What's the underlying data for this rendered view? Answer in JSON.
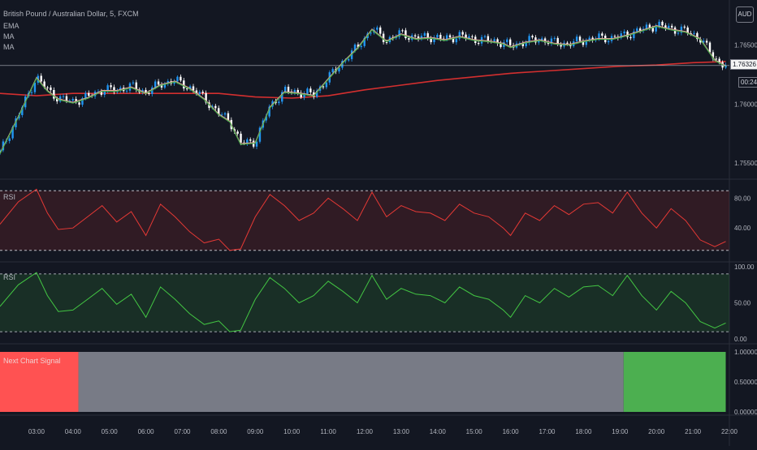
{
  "instrument": {
    "title": "British Pound / Australian Dollar, 5, FXCM",
    "currency": "AUD",
    "last_price": "1.76326",
    "countdown": "00:24"
  },
  "legend": {
    "items": [
      "EMA",
      "MA",
      "MA"
    ]
  },
  "panes": {
    "rsi_red_label": "RSI",
    "rsi_green_label": "RSI",
    "signal_label": "Next Chart Signal"
  },
  "colors": {
    "background": "#131722",
    "bull": "#2196f3",
    "bear": "#ffffff",
    "ema": "#f0a0a0",
    "ma_fast": "#4caf50",
    "ma_slow": "#d32f2f",
    "rsi_red": "#e53935",
    "rsi_green": "#43c643",
    "signal_red": "#ff5252",
    "signal_gray": "#787b86",
    "signal_green": "#4caf50"
  },
  "chart_data": [
    {
      "type": "line",
      "pane": "price",
      "x_ticks": [
        "03:00",
        "04:00",
        "05:00",
        "06:00",
        "07:00",
        "08:00",
        "09:00",
        "10:00",
        "11:00",
        "12:00",
        "13:00",
        "14:00",
        "15:00",
        "16:00",
        "17:00",
        "18:00",
        "19:00",
        "20:00",
        "21:00",
        "22:00"
      ],
      "x_range_hours": [
        2.0,
        22.0
      ],
      "y_ticks": [
        "1.76500",
        "1.76000",
        "1.75500"
      ],
      "ylim": [
        1.7537,
        1.7684
      ],
      "close_series_hours": [
        2.0,
        2.5,
        3.0,
        3.3,
        3.6,
        4.0,
        4.4,
        4.8,
        5.2,
        5.6,
        6.0,
        6.4,
        6.8,
        7.2,
        7.6,
        8.0,
        8.3,
        8.6,
        9.0,
        9.4,
        9.8,
        10.2,
        10.6,
        11.0,
        11.4,
        11.8,
        12.2,
        12.6,
        13.0,
        13.4,
        13.8,
        14.2,
        14.6,
        15.0,
        15.4,
        15.8,
        16.0,
        16.4,
        16.8,
        17.2,
        17.6,
        18.0,
        18.4,
        18.8,
        19.2,
        19.6,
        20.0,
        20.4,
        20.8,
        21.2,
        21.6,
        21.9
      ],
      "close_series_values": [
        1.7559,
        1.759,
        1.7623,
        1.7612,
        1.7605,
        1.7602,
        1.7606,
        1.7612,
        1.7612,
        1.7615,
        1.761,
        1.7617,
        1.762,
        1.7614,
        1.7605,
        1.7592,
        1.7586,
        1.7567,
        1.7568,
        1.7598,
        1.7611,
        1.761,
        1.7608,
        1.7622,
        1.7636,
        1.7648,
        1.7664,
        1.7654,
        1.766,
        1.7656,
        1.7657,
        1.7655,
        1.7658,
        1.7655,
        1.7654,
        1.7652,
        1.7649,
        1.7653,
        1.7655,
        1.7652,
        1.7651,
        1.7654,
        1.7656,
        1.7656,
        1.7659,
        1.7663,
        1.7667,
        1.7664,
        1.7662,
        1.7656,
        1.7638,
        1.7633
      ],
      "ma_slow_hours": [
        2.0,
        3.0,
        4.0,
        5.0,
        6.0,
        7.0,
        8.0,
        9.0,
        10.0,
        11.0,
        12.0,
        13.0,
        14.0,
        15.0,
        16.0,
        17.0,
        18.0,
        19.0,
        20.0,
        21.0,
        21.9
      ],
      "ma_slow_values": [
        1.7609,
        1.7607,
        1.7609,
        1.7609,
        1.7609,
        1.7609,
        1.7609,
        1.7606,
        1.7605,
        1.7607,
        1.7612,
        1.7616,
        1.762,
        1.7623,
        1.7626,
        1.7628,
        1.763,
        1.7632,
        1.7633,
        1.7635,
        1.7636
      ]
    },
    {
      "type": "line",
      "pane": "rsi",
      "name": "RSI",
      "ylim": [
        0,
        100
      ],
      "y_ticks": [
        "80.00",
        "40.00"
      ],
      "levels": [
        90,
        10
      ],
      "x_hours": [
        2.0,
        2.5,
        3.0,
        3.3,
        3.6,
        4.0,
        4.4,
        4.8,
        5.2,
        5.6,
        6.0,
        6.4,
        6.8,
        7.2,
        7.6,
        8.0,
        8.3,
        8.6,
        9.0,
        9.4,
        9.8,
        10.2,
        10.6,
        11.0,
        11.4,
        11.8,
        12.2,
        12.6,
        13.0,
        13.4,
        13.8,
        14.2,
        14.6,
        15.0,
        15.4,
        15.8,
        16.0,
        16.4,
        16.8,
        17.2,
        17.6,
        18.0,
        18.4,
        18.8,
        19.2,
        19.6,
        20.0,
        20.4,
        20.8,
        21.2,
        21.6,
        21.9
      ],
      "values": [
        45,
        75,
        92,
        60,
        38,
        40,
        55,
        70,
        48,
        62,
        30,
        72,
        55,
        35,
        20,
        25,
        10,
        12,
        55,
        85,
        70,
        50,
        60,
        80,
        66,
        50,
        88,
        55,
        70,
        62,
        60,
        50,
        72,
        60,
        55,
        40,
        30,
        60,
        50,
        70,
        58,
        72,
        74,
        60,
        88,
        60,
        40,
        66,
        50,
        24,
        15,
        22
      ]
    },
    {
      "type": "line",
      "pane": "rsi_green",
      "name": "RSI",
      "ylim": [
        0,
        100
      ],
      "y_ticks": [
        "100.00",
        "50.00",
        "0.00"
      ],
      "levels": [
        90,
        10
      ],
      "x_hours": [
        2.0,
        2.5,
        3.0,
        3.3,
        3.6,
        4.0,
        4.4,
        4.8,
        5.2,
        5.6,
        6.0,
        6.4,
        6.8,
        7.2,
        7.6,
        8.0,
        8.3,
        8.6,
        9.0,
        9.4,
        9.8,
        10.2,
        10.6,
        11.0,
        11.4,
        11.8,
        12.2,
        12.6,
        13.0,
        13.4,
        13.8,
        14.2,
        14.6,
        15.0,
        15.4,
        15.8,
        16.0,
        16.4,
        16.8,
        17.2,
        17.6,
        18.0,
        18.4,
        18.8,
        19.2,
        19.6,
        20.0,
        20.4,
        20.8,
        21.2,
        21.6,
        21.9
      ],
      "values": [
        45,
        75,
        92,
        60,
        38,
        40,
        55,
        70,
        48,
        62,
        30,
        72,
        55,
        35,
        20,
        25,
        10,
        12,
        55,
        85,
        70,
        50,
        60,
        80,
        66,
        50,
        88,
        55,
        70,
        62,
        60,
        50,
        72,
        60,
        55,
        40,
        30,
        60,
        50,
        70,
        58,
        72,
        74,
        60,
        88,
        60,
        40,
        66,
        50,
        24,
        15,
        22
      ]
    },
    {
      "type": "area",
      "pane": "signal",
      "name": "Next Chart Signal",
      "ylim": [
        0,
        1
      ],
      "y_ticks": [
        "1.00000",
        "0.50000",
        "0.00000"
      ],
      "segments": [
        {
          "from_hour": 2.0,
          "to_hour": 4.15,
          "color": "#ff5252"
        },
        {
          "from_hour": 4.15,
          "to_hour": 19.1,
          "color": "#787b86"
        },
        {
          "from_hour": 19.1,
          "to_hour": 21.9,
          "color": "#4caf50"
        }
      ]
    }
  ]
}
